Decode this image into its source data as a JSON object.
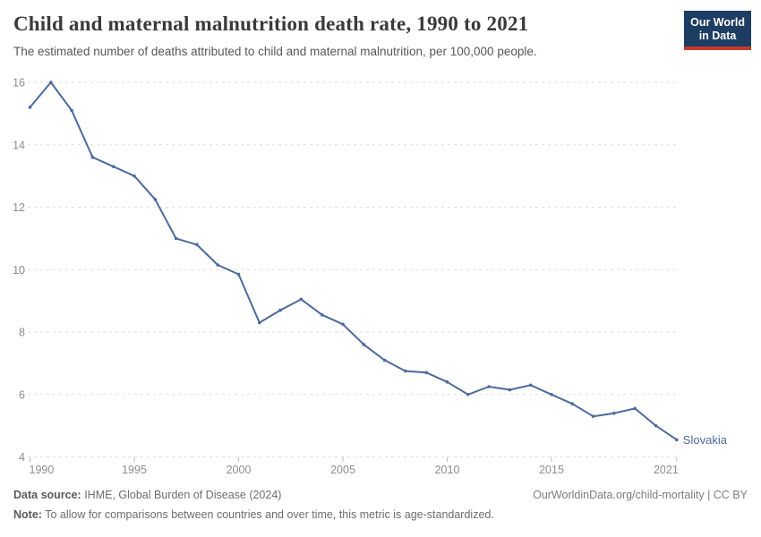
{
  "header": {
    "title": "Child and maternal malnutrition death rate, 1990 to 2021",
    "subtitle": "The estimated number of deaths attributed to child and maternal malnutrition, per 100,000 people.",
    "logo": {
      "line1": "Our World",
      "line2": "in Data",
      "bg_color": "#1d3d63",
      "bar_color": "#c8392c"
    }
  },
  "chart_data": {
    "type": "line",
    "title": "Child and maternal malnutrition death rate, 1990 to 2021",
    "subtitle": "The estimated number of deaths attributed to child and maternal malnutrition, per 100,000 people.",
    "xlabel": "",
    "ylabel": "",
    "x": [
      1990,
      1991,
      1992,
      1993,
      1994,
      1995,
      1996,
      1997,
      1998,
      1999,
      2000,
      2001,
      2002,
      2003,
      2004,
      2005,
      2006,
      2007,
      2008,
      2009,
      2010,
      2011,
      2012,
      2013,
      2014,
      2015,
      2016,
      2017,
      2018,
      2019,
      2020,
      2021
    ],
    "series": [
      {
        "name": "Slovakia",
        "color": "#4c6a9c",
        "values": [
          15.2,
          16,
          15.1,
          13.6,
          13.3,
          13,
          12.25,
          11,
          10.8,
          10.15,
          9.85,
          8.3,
          8.7,
          9.05,
          8.55,
          8.25,
          7.6,
          7.1,
          6.75,
          6.7,
          6.4,
          6,
          6.25,
          6.15,
          6.3,
          6,
          5.7,
          5.3,
          5.4,
          5.55,
          5,
          4.55
        ]
      }
    ],
    "x_ticks": [
      1990,
      1995,
      2000,
      2005,
      2010,
      2015,
      2021
    ],
    "y_ticks": [
      4,
      6,
      8,
      10,
      12,
      14,
      16
    ],
    "xlim": [
      1990,
      2021
    ],
    "ylim": [
      4,
      16
    ],
    "grid": true,
    "legend_position": "end-of-line",
    "end_label": "Slovakia"
  },
  "footer": {
    "source_label": "Data source:",
    "source_text": " IHME, Global Burden of Disease (2024)",
    "right_text": "OurWorldinData.org/child-mortality | CC BY",
    "note_label": "Note:",
    "note_text": " To allow for comparisons between countries and over time, this metric is age-standardized."
  }
}
